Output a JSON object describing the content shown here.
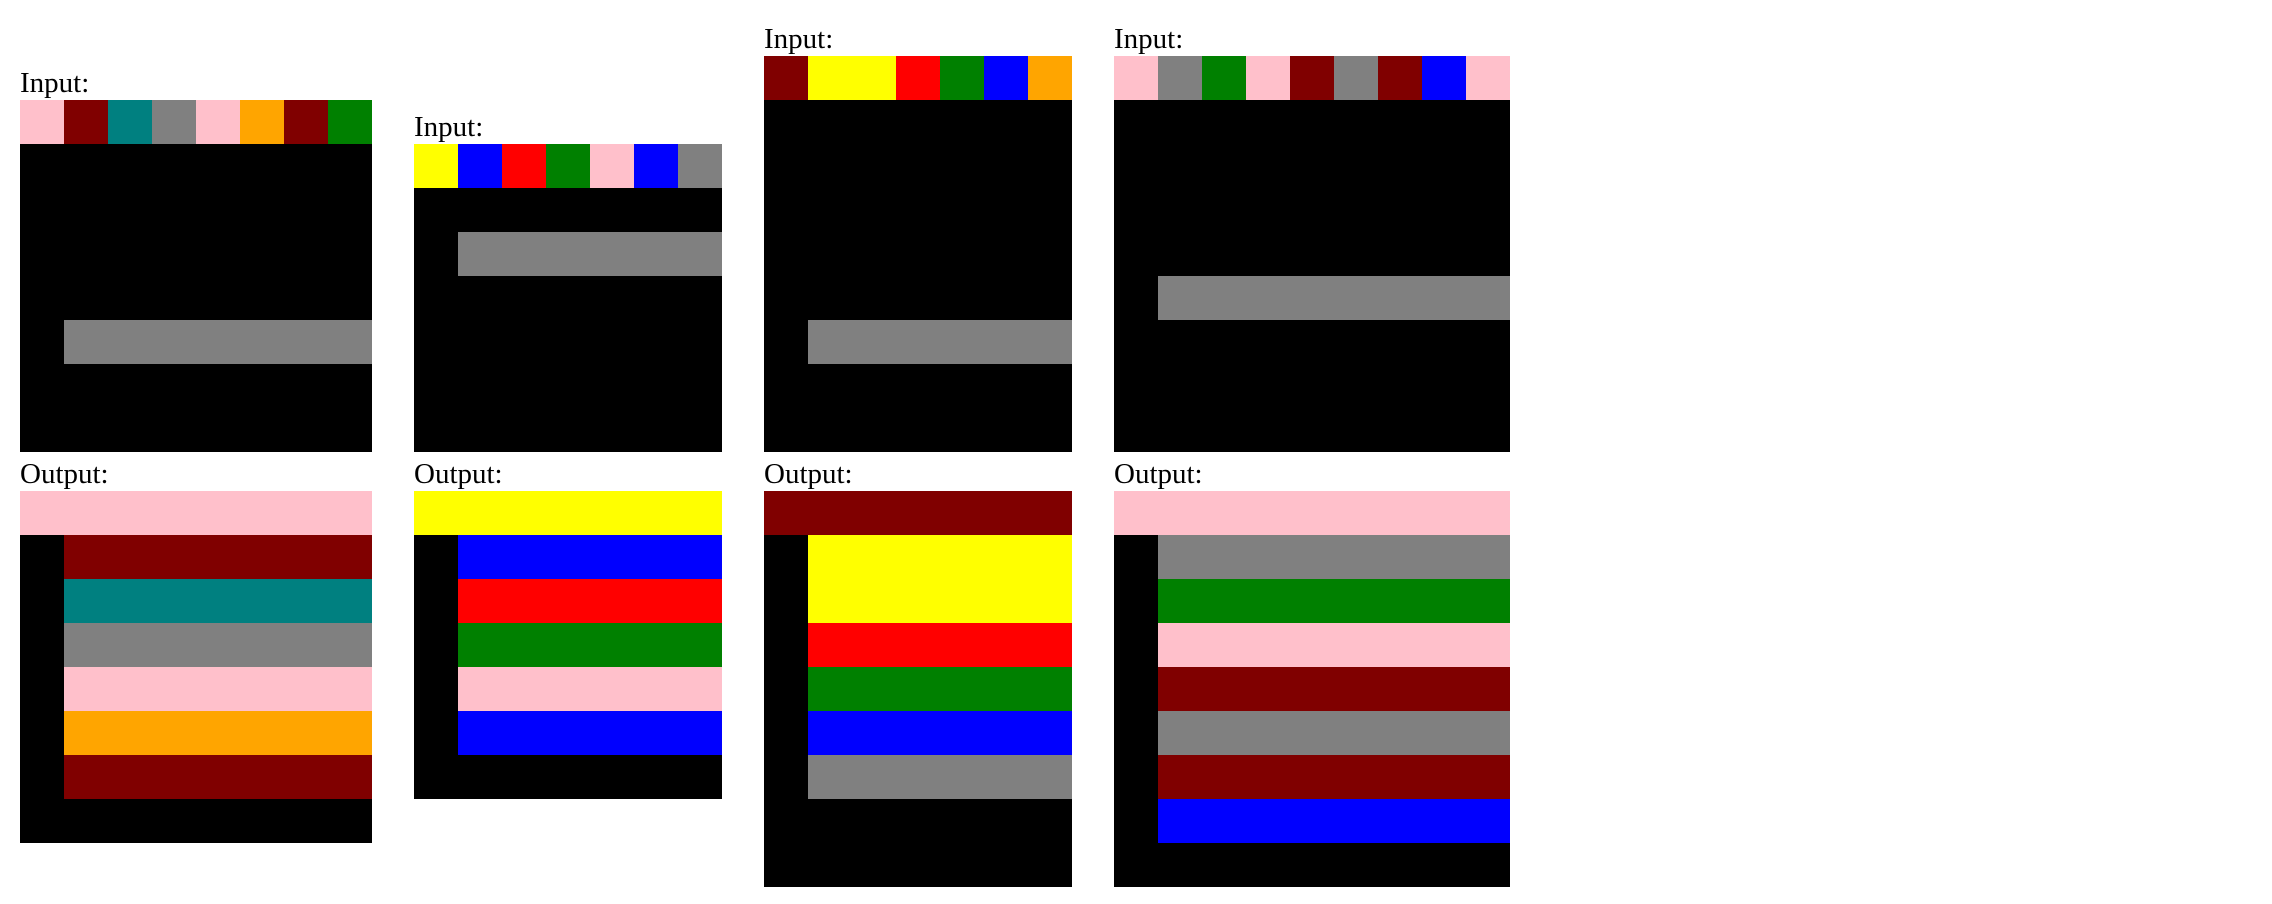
{
  "labels": {
    "input": "Input:",
    "output": "Output:"
  },
  "palette": {
    "0": "#000000",
    "1": "#0000ff",
    "2": "#ff0000",
    "3": "#008000",
    "4": "#ffff00",
    "5": "#808080",
    "6": "#ffc0cb",
    "7": "#ffa500",
    "8": "#008080",
    "9": "#800000"
  },
  "examples": [
    {
      "input": [
        [
          6,
          9,
          8,
          5,
          6,
          7,
          9,
          3
        ],
        [
          0,
          0,
          0,
          0,
          0,
          0,
          0,
          0
        ],
        [
          0,
          0,
          0,
          0,
          0,
          0,
          0,
          0
        ],
        [
          0,
          0,
          0,
          0,
          0,
          0,
          0,
          0
        ],
        [
          0,
          0,
          0,
          0,
          0,
          0,
          0,
          0
        ],
        [
          0,
          5,
          5,
          5,
          5,
          5,
          5,
          5
        ],
        [
          0,
          0,
          0,
          0,
          0,
          0,
          0,
          0
        ],
        [
          0,
          0,
          0,
          0,
          0,
          0,
          0,
          0
        ]
      ],
      "output": [
        [
          6,
          6,
          6,
          6,
          6,
          6,
          6,
          6
        ],
        [
          0,
          9,
          9,
          9,
          9,
          9,
          9,
          9
        ],
        [
          0,
          8,
          8,
          8,
          8,
          8,
          8,
          8
        ],
        [
          0,
          5,
          5,
          5,
          5,
          5,
          5,
          5
        ],
        [
          0,
          6,
          6,
          6,
          6,
          6,
          6,
          6
        ],
        [
          0,
          7,
          7,
          7,
          7,
          7,
          7,
          7
        ],
        [
          0,
          9,
          9,
          9,
          9,
          9,
          9,
          9
        ],
        [
          0,
          0,
          0,
          0,
          0,
          0,
          0,
          0
        ]
      ]
    },
    {
      "input": [
        [
          4,
          1,
          2,
          3,
          6,
          1,
          5
        ],
        [
          0,
          0,
          0,
          0,
          0,
          0,
          0
        ],
        [
          0,
          5,
          5,
          5,
          5,
          5,
          5
        ],
        [
          0,
          0,
          0,
          0,
          0,
          0,
          0
        ],
        [
          0,
          0,
          0,
          0,
          0,
          0,
          0
        ],
        [
          0,
          0,
          0,
          0,
          0,
          0,
          0
        ],
        [
          0,
          0,
          0,
          0,
          0,
          0,
          0
        ]
      ],
      "output": [
        [
          4,
          4,
          4,
          4,
          4,
          4,
          4
        ],
        [
          0,
          1,
          1,
          1,
          1,
          1,
          1
        ],
        [
          0,
          2,
          2,
          2,
          2,
          2,
          2
        ],
        [
          0,
          3,
          3,
          3,
          3,
          3,
          3
        ],
        [
          0,
          6,
          6,
          6,
          6,
          6,
          6
        ],
        [
          0,
          1,
          1,
          1,
          1,
          1,
          1
        ],
        [
          0,
          0,
          0,
          0,
          0,
          0,
          0
        ]
      ]
    },
    {
      "input": [
        [
          9,
          4,
          4,
          2,
          3,
          1,
          7
        ],
        [
          0,
          0,
          0,
          0,
          0,
          0,
          0
        ],
        [
          0,
          0,
          0,
          0,
          0,
          0,
          0
        ],
        [
          0,
          0,
          0,
          0,
          0,
          0,
          0
        ],
        [
          0,
          0,
          0,
          0,
          0,
          0,
          0
        ],
        [
          0,
          0,
          0,
          0,
          0,
          0,
          0
        ],
        [
          0,
          5,
          5,
          5,
          5,
          5,
          5
        ],
        [
          0,
          0,
          0,
          0,
          0,
          0,
          0
        ],
        [
          0,
          0,
          0,
          0,
          0,
          0,
          0
        ]
      ],
      "output": [
        [
          9,
          9,
          9,
          9,
          9,
          9,
          9
        ],
        [
          0,
          4,
          4,
          4,
          4,
          4,
          4
        ],
        [
          0,
          4,
          4,
          4,
          4,
          4,
          4
        ],
        [
          0,
          2,
          2,
          2,
          2,
          2,
          2
        ],
        [
          0,
          3,
          3,
          3,
          3,
          3,
          3
        ],
        [
          0,
          1,
          1,
          1,
          1,
          1,
          1
        ],
        [
          0,
          5,
          5,
          5,
          5,
          5,
          5
        ],
        [
          0,
          0,
          0,
          0,
          0,
          0,
          0
        ],
        [
          0,
          0,
          0,
          0,
          0,
          0,
          0
        ]
      ]
    },
    {
      "input": [
        [
          6,
          5,
          3,
          6,
          9,
          5,
          9,
          1,
          6
        ],
        [
          0,
          0,
          0,
          0,
          0,
          0,
          0,
          0,
          0
        ],
        [
          0,
          0,
          0,
          0,
          0,
          0,
          0,
          0,
          0
        ],
        [
          0,
          0,
          0,
          0,
          0,
          0,
          0,
          0,
          0
        ],
        [
          0,
          0,
          0,
          0,
          0,
          0,
          0,
          0,
          0
        ],
        [
          0,
          5,
          5,
          5,
          5,
          5,
          5,
          5,
          5
        ],
        [
          0,
          0,
          0,
          0,
          0,
          0,
          0,
          0,
          0
        ],
        [
          0,
          0,
          0,
          0,
          0,
          0,
          0,
          0,
          0
        ],
        [
          0,
          0,
          0,
          0,
          0,
          0,
          0,
          0,
          0
        ]
      ],
      "output": [
        [
          6,
          6,
          6,
          6,
          6,
          6,
          6,
          6,
          6
        ],
        [
          0,
          5,
          5,
          5,
          5,
          5,
          5,
          5,
          5
        ],
        [
          0,
          3,
          3,
          3,
          3,
          3,
          3,
          3,
          3
        ],
        [
          0,
          6,
          6,
          6,
          6,
          6,
          6,
          6,
          6
        ],
        [
          0,
          9,
          9,
          9,
          9,
          9,
          9,
          9,
          9
        ],
        [
          0,
          5,
          5,
          5,
          5,
          5,
          5,
          5,
          5
        ],
        [
          0,
          9,
          9,
          9,
          9,
          9,
          9,
          9,
          9
        ],
        [
          0,
          1,
          1,
          1,
          1,
          1,
          1,
          1,
          1
        ],
        [
          0,
          0,
          0,
          0,
          0,
          0,
          0,
          0,
          0
        ]
      ]
    }
  ]
}
